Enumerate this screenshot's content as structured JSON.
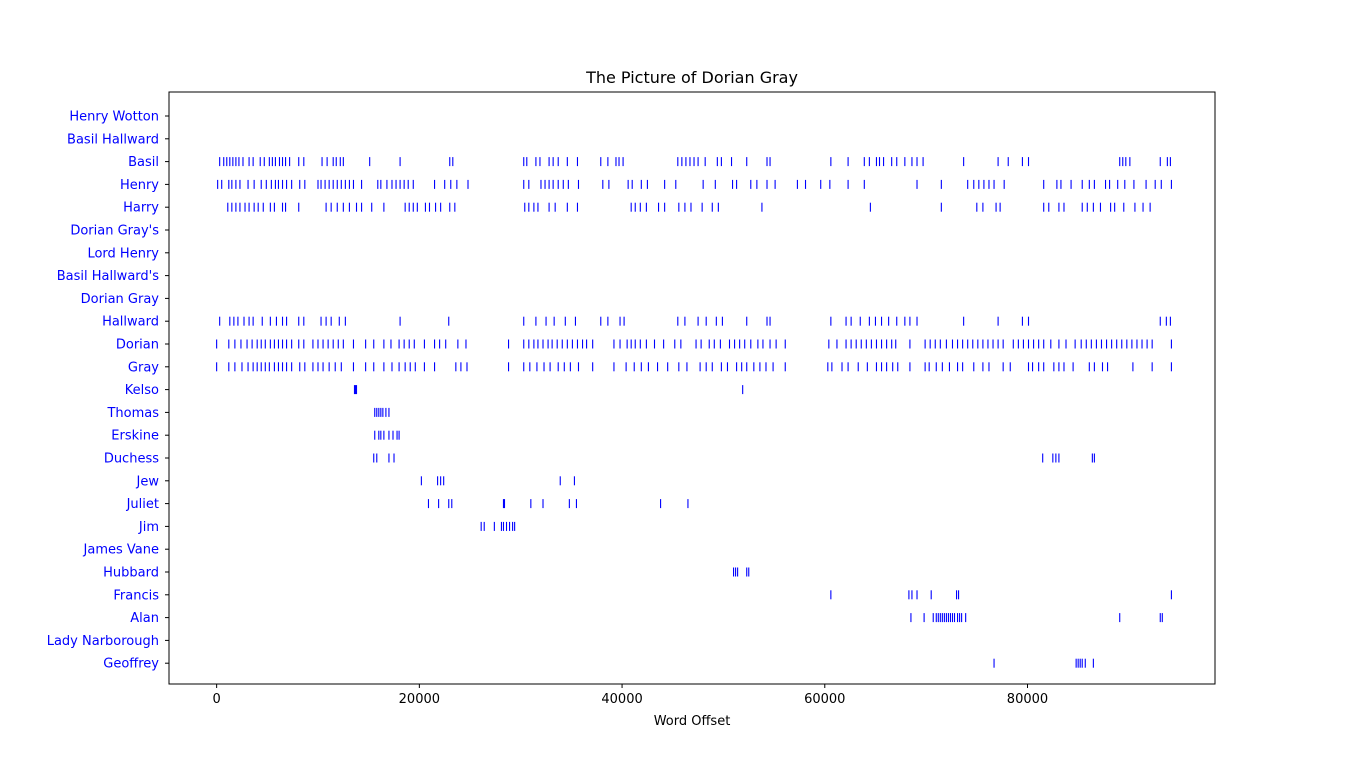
{
  "chart_data": {
    "type": "scatter",
    "title": "The Picture of Dorian Gray",
    "xlabel": "Word Offset",
    "ylabel": "",
    "xlim": [
      -4700,
      98500
    ],
    "xticks": [
      0,
      20000,
      40000,
      60000,
      80000
    ],
    "xtick_labels": [
      "0",
      "20000",
      "40000",
      "60000",
      "80000"
    ],
    "grid": false,
    "marker": "|",
    "color": "#0000ff",
    "categories": [
      "Henry Wotton",
      "Basil Hallward",
      "Basil",
      "Henry",
      "Harry",
      "Dorian Gray's",
      "Lord Henry",
      "Basil Hallward's",
      "Dorian Gray",
      "Hallward",
      "Dorian",
      "Gray",
      "Kelso",
      "Thomas",
      "Erskine",
      "Duchess",
      "Jew",
      "Juliet",
      "Jim",
      "James Vane",
      "Hubbard",
      "Francis",
      "Alan",
      "Lady Narborough",
      "Geoffrey"
    ],
    "series": [
      {
        "name": "Henry Wotton",
        "x": []
      },
      {
        "name": "Basil Hallward",
        "x": []
      },
      {
        "name": "Basil",
        "x": [
          300,
          700,
          1000,
          1300,
          1600,
          1900,
          2200,
          2600,
          3200,
          3600,
          4300,
          4700,
          5200,
          5500,
          5800,
          6200,
          6500,
          6800,
          7200,
          8100,
          8600,
          10400,
          10900,
          11500,
          11800,
          12200,
          12500,
          15100,
          18100,
          23000,
          23300,
          30300,
          30600,
          31500,
          31900,
          32800,
          33200,
          33700,
          34600,
          35600,
          37900,
          38600,
          39400,
          39700,
          40100,
          45500,
          45900,
          46300,
          46700,
          47100,
          47500,
          48200,
          49400,
          49800,
          50800,
          52300,
          54300,
          54600,
          60600,
          62300,
          63900,
          64400,
          65100,
          65400,
          65800,
          66600,
          67100,
          67900,
          68600,
          69100,
          69700,
          73700,
          77100,
          78100,
          79500,
          80100,
          89100,
          89400,
          89700,
          90100,
          93100,
          93800,
          94100
        ]
      },
      {
        "name": "Henry",
        "x": [
          100,
          500,
          1200,
          1500,
          1900,
          2300,
          3100,
          3700,
          4400,
          4900,
          5400,
          5800,
          6100,
          6500,
          6900,
          7400,
          8200,
          8700,
          10000,
          10300,
          10700,
          11100,
          11500,
          11900,
          12300,
          12700,
          13100,
          13500,
          14300,
          15900,
          16200,
          16800,
          17300,
          17700,
          18100,
          18500,
          18900,
          19400,
          21500,
          22500,
          23100,
          23700,
          24800,
          30300,
          30800,
          32000,
          32400,
          32800,
          33200,
          33700,
          34200,
          34700,
          35700,
          38100,
          38700,
          40600,
          41000,
          41900,
          42500,
          44200,
          45300,
          48000,
          49200,
          50900,
          51300,
          52700,
          53300,
          54300,
          55100,
          57300,
          58100,
          59600,
          60500,
          62300,
          63900,
          69100,
          71500,
          74100,
          74700,
          75200,
          75700,
          76200,
          76700,
          77700,
          81600,
          82900,
          83300,
          84300,
          85400,
          86100,
          86600,
          87700,
          88100,
          88900,
          89600,
          90500,
          91700,
          92600,
          93200,
          94200
        ]
      },
      {
        "name": "Harry",
        "x": [
          1100,
          1500,
          1900,
          2300,
          2800,
          3200,
          3700,
          4100,
          4600,
          5300,
          5700,
          6500,
          6800,
          8100,
          10800,
          11300,
          11900,
          12500,
          13100,
          13800,
          14300,
          15300,
          16500,
          18600,
          19000,
          19400,
          19800,
          20600,
          21000,
          21600,
          22100,
          23000,
          23500,
          30400,
          30800,
          31300,
          31700,
          32800,
          33400,
          34600,
          35600,
          40900,
          41300,
          41800,
          42400,
          43600,
          44200,
          45600,
          46200,
          46800,
          47900,
          48900,
          49500,
          53800,
          64500,
          71500,
          75000,
          75600,
          76900,
          77300,
          81600,
          82100,
          83100,
          83600,
          85400,
          85900,
          86500,
          87200,
          88200,
          88600,
          89500,
          90600,
          91400,
          92100
        ]
      },
      {
        "name": "Dorian Gray's",
        "x": []
      },
      {
        "name": "Lord Henry",
        "x": []
      },
      {
        "name": "Basil Hallward's",
        "x": []
      },
      {
        "name": "Dorian Gray",
        "x": []
      },
      {
        "name": "Hallward",
        "x": [
          300,
          1300,
          1700,
          2100,
          2700,
          3200,
          3600,
          4500,
          5300,
          5900,
          6500,
          6900,
          8100,
          8600,
          10300,
          10800,
          11300,
          12100,
          12700,
          18100,
          22900,
          30300,
          31500,
          32500,
          33300,
          34400,
          35400,
          37900,
          38600,
          39800,
          40200,
          45500,
          46200,
          47500,
          48300,
          49300,
          49900,
          52300,
          54300,
          54600,
          60600,
          62100,
          62600,
          63500,
          64400,
          65000,
          65600,
          66300,
          67100,
          67900,
          68400,
          69100,
          73700,
          77100,
          79500,
          80100,
          93100,
          93700,
          94100
        ]
      },
      {
        "name": "Dorian",
        "x": [
          0,
          1200,
          1800,
          2400,
          3000,
          3500,
          4000,
          4400,
          4800,
          5300,
          5700,
          6100,
          6500,
          6900,
          7400,
          8100,
          8600,
          9500,
          10000,
          10500,
          11000,
          11500,
          12000,
          12500,
          13500,
          14700,
          15500,
          16500,
          17200,
          18000,
          18500,
          19000,
          19500,
          20500,
          21500,
          22000,
          22600,
          23800,
          24600,
          28800,
          30300,
          30800,
          31300,
          31700,
          32200,
          32700,
          33100,
          33600,
          34100,
          34600,
          35100,
          35600,
          36100,
          36500,
          37100,
          39200,
          39800,
          40500,
          40900,
          41300,
          41800,
          42400,
          43200,
          44100,
          45200,
          45800,
          47300,
          47800,
          48600,
          49100,
          49700,
          50600,
          51100,
          51600,
          52100,
          52700,
          53400,
          53900,
          54600,
          55200,
          56100,
          60400,
          61200,
          62100,
          62600,
          63100,
          63600,
          64100,
          64600,
          65100,
          65600,
          66100,
          66600,
          67000,
          68400,
          69900,
          70400,
          70900,
          71400,
          72000,
          72600,
          73100,
          73600,
          74100,
          74600,
          75100,
          75600,
          76100,
          76600,
          77100,
          77600,
          78600,
          79100,
          79600,
          80100,
          80600,
          81100,
          81600,
          82300,
          83100,
          83800,
          84700,
          85300,
          85800,
          86300,
          86800,
          87300,
          87800,
          88300,
          88800,
          89300,
          89800,
          90300,
          90800,
          91300,
          91800,
          92300,
          94200
        ]
      },
      {
        "name": "Gray",
        "x": [
          0,
          1200,
          1800,
          2500,
          3100,
          3600,
          4000,
          4400,
          4800,
          5200,
          5700,
          6100,
          6500,
          6900,
          7400,
          8200,
          8700,
          9500,
          10000,
          10500,
          11100,
          11700,
          12300,
          13500,
          14700,
          15500,
          16500,
          17300,
          18000,
          18600,
          19100,
          19600,
          20500,
          21500,
          23600,
          24100,
          24700,
          28800,
          30300,
          30900,
          31600,
          32300,
          32900,
          33700,
          34300,
          34900,
          35700,
          37100,
          39200,
          40400,
          41200,
          41900,
          42600,
          43500,
          44500,
          45600,
          46400,
          47700,
          48300,
          48900,
          49800,
          50400,
          51300,
          51800,
          52300,
          53000,
          53600,
          54200,
          54900,
          56100,
          60300,
          60700,
          61700,
          62300,
          63300,
          64200,
          65100,
          65600,
          66100,
          66700,
          67200,
          68400,
          69900,
          70300,
          71000,
          71600,
          72300,
          73100,
          73600,
          74700,
          75600,
          76200,
          77600,
          78300,
          80100,
          80500,
          81100,
          81600,
          82600,
          83100,
          83600,
          84500,
          86100,
          86600,
          87400,
          87900,
          90400,
          92300,
          94200
        ]
      },
      {
        "name": "Kelso",
        "x": [
          13600,
          13700,
          13800,
          51900
        ]
      },
      {
        "name": "Thomas",
        "x": [
          15600,
          15800,
          16000,
          16200,
          16400,
          16700,
          17000
        ]
      },
      {
        "name": "Erskine",
        "x": [
          15600,
          16000,
          16200,
          16500,
          17000,
          17400,
          17800,
          18000
        ]
      },
      {
        "name": "Duchess",
        "x": [
          15500,
          15800,
          17000,
          17500,
          81500,
          82500,
          82800,
          83100,
          86400,
          86600
        ]
      },
      {
        "name": "Jew",
        "x": [
          20200,
          21800,
          22100,
          22400,
          33900,
          35300
        ]
      },
      {
        "name": "Juliet",
        "x": [
          20900,
          21900,
          22900,
          23200,
          28300,
          28400,
          31000,
          32200,
          34800,
          35500,
          43800,
          46500
        ]
      },
      {
        "name": "Jim",
        "x": [
          26100,
          26400,
          27400,
          28100,
          28300,
          28600,
          28900,
          29200,
          29400
        ]
      },
      {
        "name": "James Vane",
        "x": []
      },
      {
        "name": "Hubbard",
        "x": [
          51000,
          51200,
          51400,
          52300,
          52500
        ]
      },
      {
        "name": "Francis",
        "x": [
          60600,
          68300,
          68600,
          69100,
          70500,
          73000,
          73200,
          94200
        ]
      },
      {
        "name": "Alan",
        "x": [
          68500,
          69800,
          70700,
          71000,
          71200,
          71400,
          71600,
          71800,
          72000,
          72200,
          72400,
          72600,
          72800,
          73100,
          73300,
          73500,
          73900,
          89100,
          93100,
          93300
        ]
      },
      {
        "name": "Lady Narborough",
        "x": []
      },
      {
        "name": "Geoffrey",
        "x": [
          76700,
          84800,
          85000,
          85200,
          85400,
          85700,
          86500
        ]
      }
    ]
  }
}
